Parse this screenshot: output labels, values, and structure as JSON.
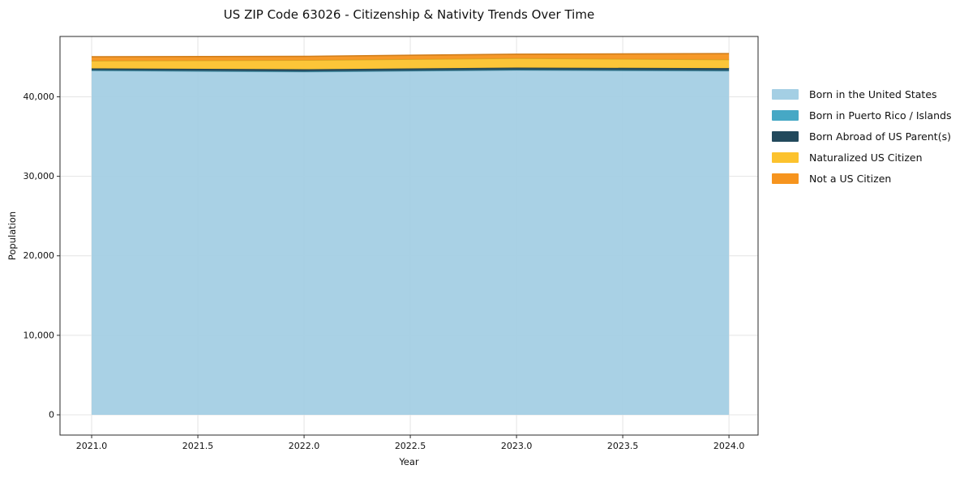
{
  "chart_data": {
    "type": "area",
    "stacked": true,
    "title": "US ZIP Code 63026 - Citizenship & Nativity Trends Over Time",
    "xlabel": "Year",
    "ylabel": "Population",
    "x": [
      2021,
      2022,
      2023,
      2024
    ],
    "series": [
      {
        "name": "Born in the United States",
        "color": "#a4cfe4",
        "values": [
          43300,
          43150,
          43350,
          43250
        ]
      },
      {
        "name": "Born in Puerto Rico / Islands",
        "color": "#46a8c5",
        "values": [
          40,
          40,
          40,
          50
        ]
      },
      {
        "name": "Born Abroad of US Parent(s)",
        "color": "#22495c",
        "values": [
          230,
          270,
          280,
          300
        ]
      },
      {
        "name": "Naturalized US Citizen",
        "color": "#fcc22d",
        "values": [
          960,
          1150,
          1180,
          1080
        ]
      },
      {
        "name": "Not a US Citizen",
        "color": "#f6941e",
        "values": [
          510,
          480,
          510,
          760
        ]
      }
    ],
    "xlim": [
      2020.851,
      2024.137
    ],
    "ylim": [
      -2548,
      47592
    ],
    "xticks": {
      "values": [
        2021.0,
        2021.5,
        2022.0,
        2022.5,
        2023.0,
        2023.5,
        2024.0
      ],
      "labels": [
        "2021.0",
        "2021.5",
        "2022.0",
        "2022.5",
        "2023.0",
        "2023.5",
        "2024.0"
      ]
    },
    "yticks": {
      "values": [
        0,
        10000,
        20000,
        30000,
        40000
      ],
      "labels": [
        "0",
        "10,000",
        "20,000",
        "30,000",
        "40,000"
      ]
    },
    "grid": true,
    "legend_position": "right"
  },
  "colors": {
    "grid": "#e4e4e4",
    "spine": "#2a2a2a",
    "text": "#111111",
    "background": "#ffffff"
  }
}
